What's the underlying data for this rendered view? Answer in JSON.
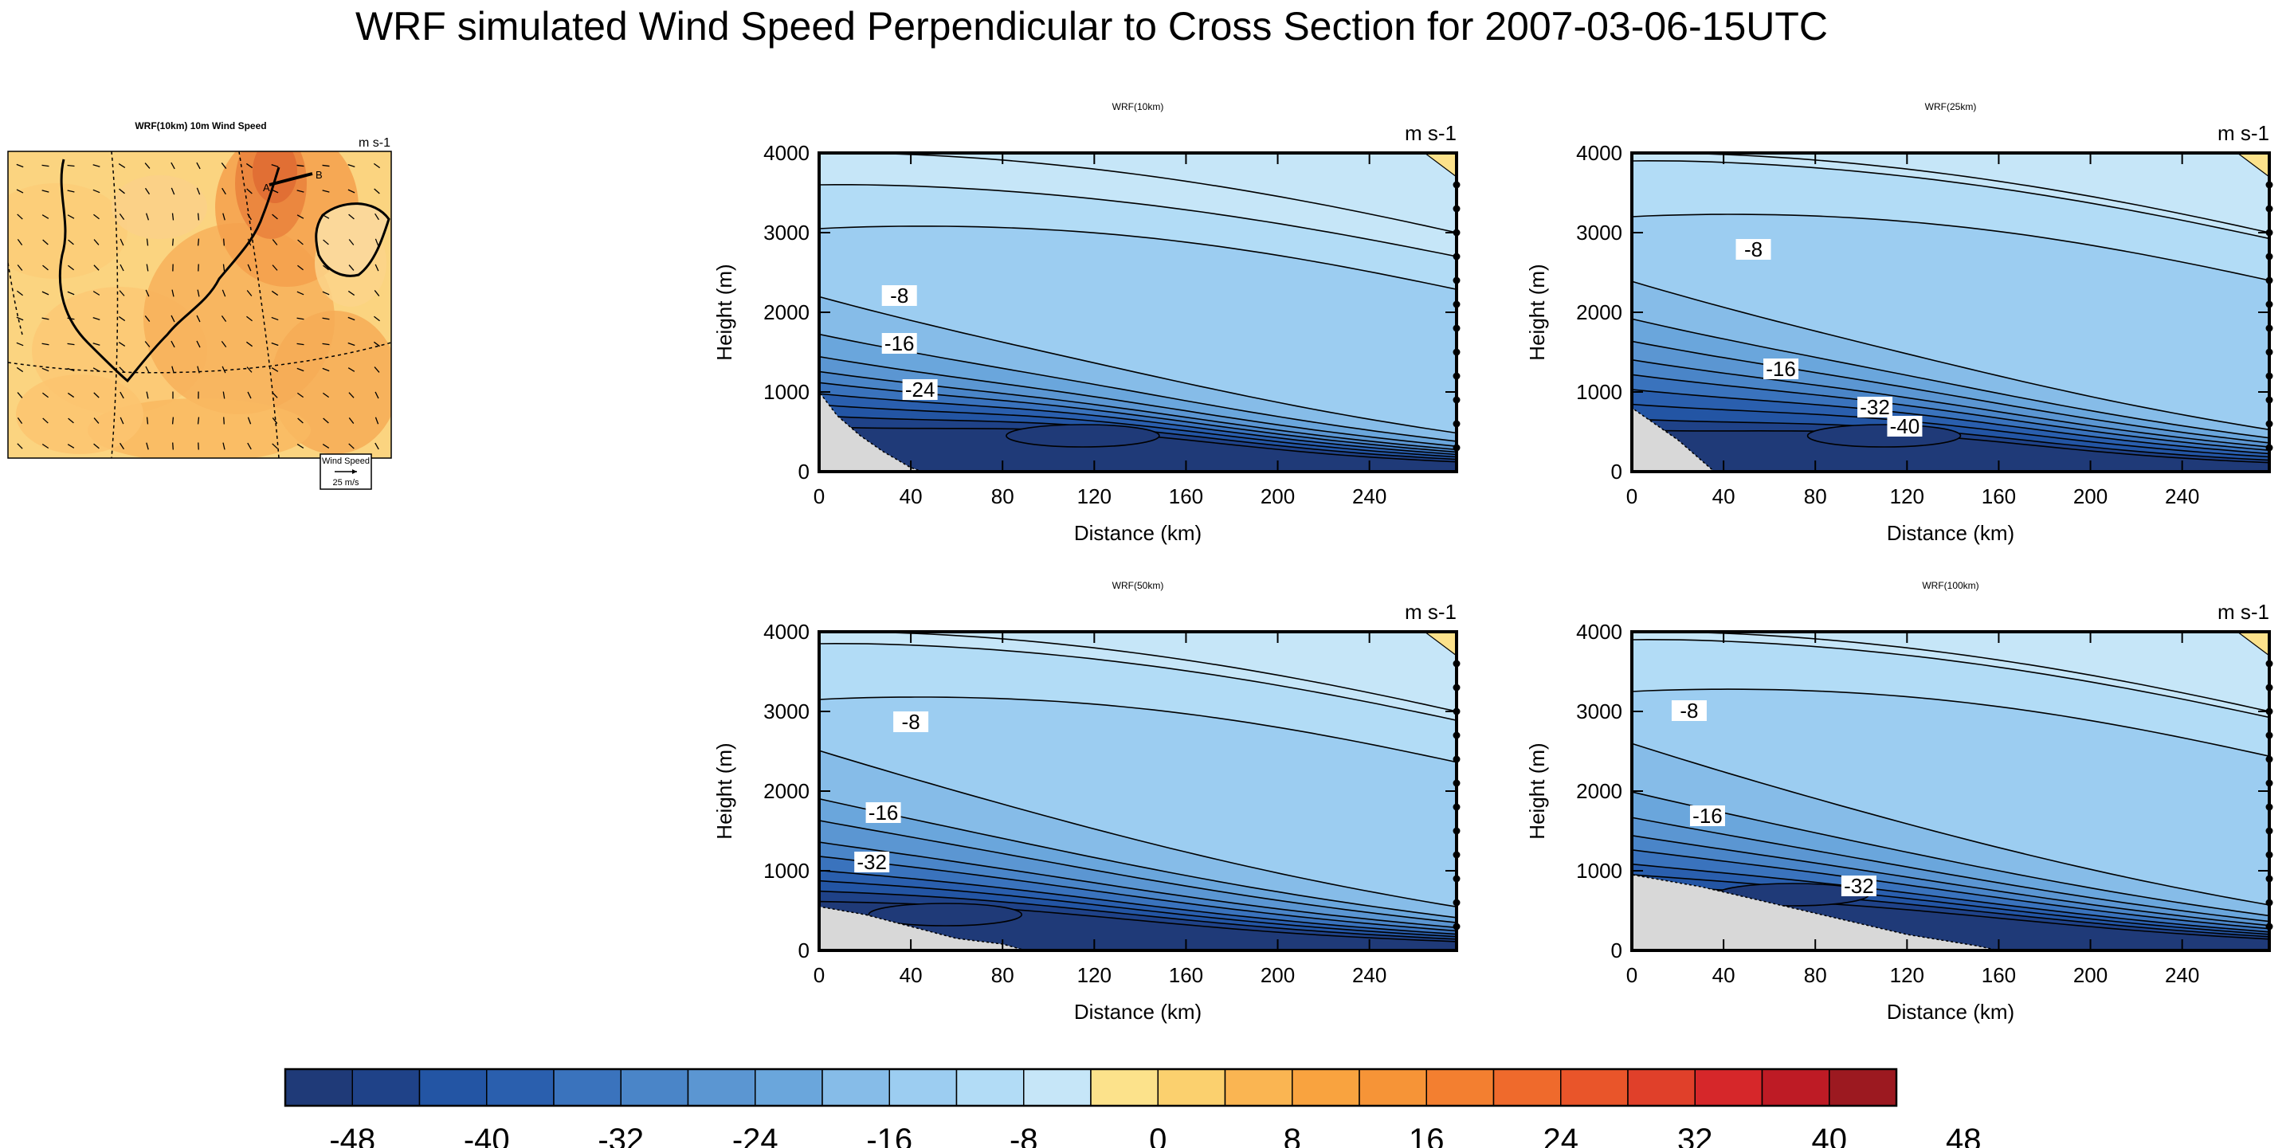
{
  "title": "WRF simulated Wind Speed Perpendicular to Cross Section for 2007-03-06-15UTC",
  "colors": {
    "terrain": "#d8d8d8",
    "negative": [
      "#1f3a78",
      "#1f4288",
      "#2355a4",
      "#2a5fae",
      "#3a73bd",
      "#4a85c8",
      "#5b96d2",
      "#6aa6dc",
      "#86bce8",
      "#9ccdf1",
      "#b2dcf6",
      "#c6e6f8"
    ],
    "positive": [
      "#fce28b",
      "#fbd06e",
      "#fab552",
      "#f9a33f",
      "#f69437",
      "#f37f30",
      "#ef6a2c",
      "#e9552a",
      "#e0402a",
      "#d6272a",
      "#be1b25",
      "#9c1920"
    ]
  },
  "map": {
    "title": "WRF(10km) 10m Wind Speed",
    "units": "m s-1",
    "legend_label": "Wind Speed",
    "legend_ref": "25 m/s",
    "cross_section_labels": [
      "A",
      "B"
    ]
  },
  "colorbar": {
    "labels": [
      "-48",
      "-40",
      "-32",
      "-24",
      "-16",
      "-8",
      "0",
      "8",
      "16",
      "24",
      "32",
      "40",
      "48"
    ]
  },
  "chart_data": [
    {
      "type": "contour",
      "title": "WRF(10km)",
      "units": "m s-1",
      "xlabel": "Distance (km)",
      "ylabel": "Height (m)",
      "xticks": [
        0,
        40,
        80,
        120,
        160,
        200,
        240
      ],
      "yticks": [
        0,
        1000,
        2000,
        3000,
        4000
      ],
      "xlim": [
        0,
        278
      ],
      "ylim": [
        0,
        4000
      ],
      "contour_labels": [
        {
          "text": "-8",
          "x": 35,
          "y": 2200
        },
        {
          "text": "-16",
          "x": 35,
          "y": 1600
        },
        {
          "text": "-24",
          "x": 44,
          "y": 1020
        }
      ],
      "jet_core": {
        "x": 115,
        "y": 450,
        "value": -40
      },
      "terrain": [
        [
          0,
          1000
        ],
        [
          8,
          700
        ],
        [
          18,
          450
        ],
        [
          28,
          250
        ],
        [
          40,
          50
        ],
        [
          45,
          0
        ]
      ]
    },
    {
      "type": "contour",
      "title": "WRF(25km)",
      "units": "m s-1",
      "xlabel": "Distance (km)",
      "ylabel": "Height (m)",
      "xticks": [
        0,
        40,
        80,
        120,
        160,
        200,
        240
      ],
      "yticks": [
        0,
        1000,
        2000,
        3000,
        4000
      ],
      "xlim": [
        0,
        278
      ],
      "ylim": [
        0,
        4000
      ],
      "contour_labels": [
        {
          "text": "-8",
          "x": 53,
          "y": 2780
        },
        {
          "text": "-16",
          "x": 65,
          "y": 1280
        },
        {
          "text": "-32",
          "x": 106,
          "y": 800
        },
        {
          "text": "-40",
          "x": 119,
          "y": 560
        }
      ],
      "jet_core": {
        "x": 110,
        "y": 450,
        "value": -44
      },
      "terrain": [
        [
          0,
          800
        ],
        [
          10,
          600
        ],
        [
          20,
          400
        ],
        [
          30,
          150
        ],
        [
          36,
          0
        ]
      ]
    },
    {
      "type": "contour",
      "title": "WRF(50km)",
      "units": "m s-1",
      "xlabel": "Distance (km)",
      "ylabel": "Height (m)",
      "xticks": [
        0,
        40,
        80,
        120,
        160,
        200,
        240
      ],
      "yticks": [
        0,
        1000,
        2000,
        3000,
        4000
      ],
      "xlim": [
        0,
        278
      ],
      "ylim": [
        0,
        4000
      ],
      "contour_labels": [
        {
          "text": "-8",
          "x": 40,
          "y": 2860
        },
        {
          "text": "-16",
          "x": 28,
          "y": 1720
        },
        {
          "text": "-32",
          "x": 23,
          "y": 1100
        }
      ],
      "jet_core": {
        "x": 55,
        "y": 450,
        "value": -42
      },
      "terrain": [
        [
          0,
          550
        ],
        [
          20,
          450
        ],
        [
          40,
          300
        ],
        [
          60,
          150
        ],
        [
          80,
          80
        ],
        [
          90,
          0
        ]
      ]
    },
    {
      "type": "contour",
      "title": "WRF(100km)",
      "units": "m s-1",
      "xlabel": "Distance (km)",
      "ylabel": "Height (m)",
      "xticks": [
        0,
        40,
        80,
        120,
        160,
        200,
        240
      ],
      "yticks": [
        0,
        1000,
        2000,
        3000,
        4000
      ],
      "xlim": [
        0,
        278
      ],
      "ylim": [
        0,
        4000
      ],
      "contour_labels": [
        {
          "text": "-8",
          "x": 25,
          "y": 3000
        },
        {
          "text": "-16",
          "x": 33,
          "y": 1680
        },
        {
          "text": "-32",
          "x": 99,
          "y": 800
        }
      ],
      "jet_core": {
        "x": 70,
        "y": 700,
        "value": -38
      },
      "terrain": [
        [
          0,
          950
        ],
        [
          30,
          800
        ],
        [
          60,
          600
        ],
        [
          90,
          400
        ],
        [
          120,
          200
        ],
        [
          150,
          60
        ],
        [
          160,
          0
        ]
      ]
    }
  ]
}
